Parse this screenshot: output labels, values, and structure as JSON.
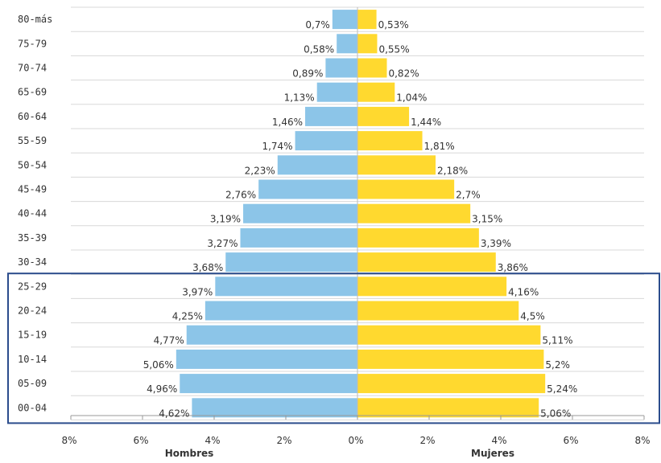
{
  "chart_data": {
    "type": "bar",
    "orientation": "horizontal-population-pyramid",
    "categories": [
      "80-más",
      "75-79",
      "70-74",
      "65-69",
      "60-64",
      "55-59",
      "50-54",
      "45-49",
      "40-44",
      "35-39",
      "30-34",
      "25-29",
      "20-24",
      "15-19",
      "10-14",
      "05-09",
      "00-04"
    ],
    "series": [
      {
        "name": "Hombres",
        "values": [
          0.7,
          0.58,
          0.89,
          1.13,
          1.46,
          1.74,
          2.23,
          2.76,
          3.19,
          3.27,
          3.68,
          3.97,
          4.25,
          4.77,
          5.06,
          4.96,
          4.62
        ],
        "labels": [
          "0,7%",
          "0,58%",
          "0,89%",
          "1,13%",
          "1,46%",
          "1,74%",
          "2,23%",
          "2,76%",
          "3,19%",
          "3,27%",
          "3,68%",
          "3,97%",
          "4,25%",
          "4,77%",
          "5,06%",
          "4,96%",
          "4,62%"
        ],
        "color": "#8CC5E8"
      },
      {
        "name": "Mujeres",
        "values": [
          0.53,
          0.55,
          0.82,
          1.04,
          1.44,
          1.81,
          2.18,
          2.7,
          3.15,
          3.39,
          3.86,
          4.16,
          4.5,
          5.11,
          5.2,
          5.24,
          5.06
        ],
        "labels": [
          "0,53%",
          "0,55%",
          "0,82%",
          "1,04%",
          "1,44%",
          "1,81%",
          "2,18%",
          "2,7%",
          "3,15%",
          "3,39%",
          "3,86%",
          "4,16%",
          "4,5%",
          "5,11%",
          "5,2%",
          "5,24%",
          "5,06%"
        ],
        "color": "#FFD92F"
      }
    ],
    "xlim": [
      -8,
      8
    ],
    "xticks": [
      -8,
      -6,
      -4,
      -2,
      0,
      2,
      4,
      6,
      8
    ],
    "xtick_labels": [
      "8%",
      "6%",
      "4%",
      "2%",
      "0%",
      "2%",
      "4%",
      "6%",
      "8%"
    ],
    "xlabel_left": "Hombres",
    "xlabel_right": "Mujeres",
    "grid": "horizontal lines",
    "highlight": {
      "from_category": "25-29",
      "to_category": "00-04",
      "color": "#2B4C8C"
    }
  }
}
